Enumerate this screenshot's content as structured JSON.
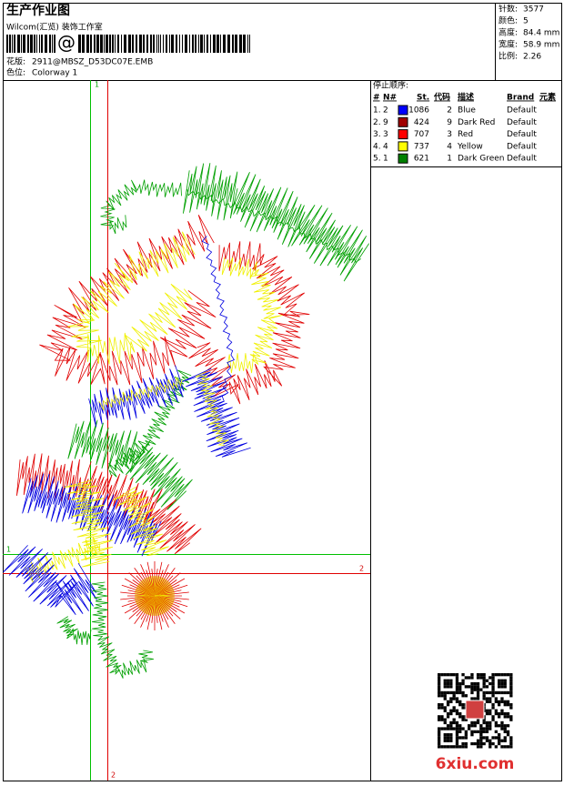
{
  "header": {
    "title": "生产作业图",
    "studio": "Wilcom(汇览) 装饰工作室",
    "barcode_mark": "@",
    "design_label": "花版:",
    "design_file": "2911@MBSZ_D53DC07E.EMB",
    "colorway_label": "色位:",
    "colorway": "Colorway 1"
  },
  "stats": [
    {
      "label": "针数:",
      "value": "3577"
    },
    {
      "label": "颜色:",
      "value": "5"
    },
    {
      "label": "高度:",
      "value": "84.4 mm"
    },
    {
      "label": "宽度:",
      "value": "58.9 mm"
    },
    {
      "label": "比例:",
      "value": "2.26"
    }
  ],
  "stop_sequence": {
    "title": "停止顺序:",
    "columns": [
      "#",
      "N#",
      "St.",
      "代码",
      "描述",
      "Brand",
      "元素"
    ],
    "rows": [
      {
        "index": "1.",
        "needle": "2",
        "color": "#0000ff",
        "stitches": "1086",
        "code": "2",
        "description": "Blue",
        "brand": "Default"
      },
      {
        "index": "2.",
        "needle": "9",
        "color": "#a00000",
        "stitches": "424",
        "code": "9",
        "description": "Dark Red",
        "brand": "Default"
      },
      {
        "index": "3.",
        "needle": "3",
        "color": "#ff0000",
        "stitches": "707",
        "code": "3",
        "description": "Red",
        "brand": "Default"
      },
      {
        "index": "4.",
        "needle": "4",
        "color": "#ffff00",
        "stitches": "737",
        "code": "4",
        "description": "Yellow",
        "brand": "Default"
      },
      {
        "index": "5.",
        "needle": "1",
        "color": "#008000",
        "stitches": "621",
        "code": "1",
        "description": "Dark Green",
        "brand": "Default"
      }
    ]
  },
  "guides": {
    "green_v": "1",
    "red_v": "2",
    "green_h": "1",
    "red_h": "2"
  },
  "watermark": "6xiu.com"
}
